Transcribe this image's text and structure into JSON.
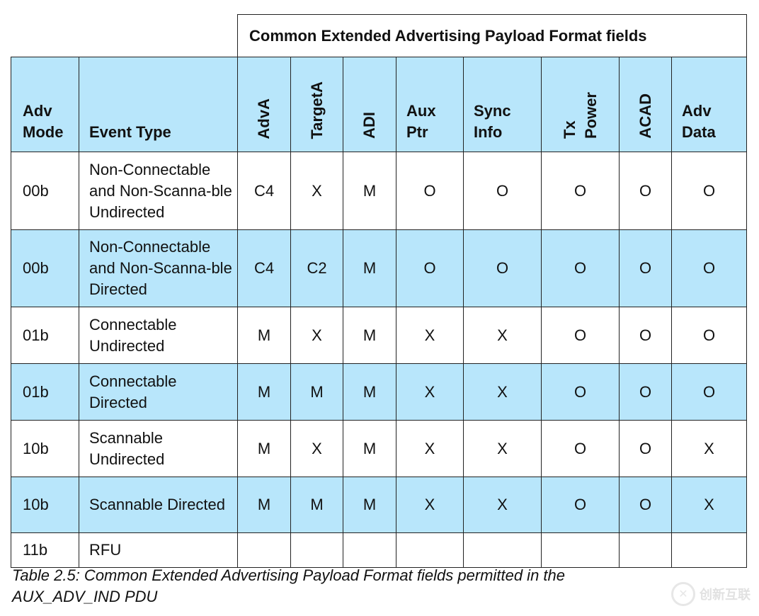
{
  "table": {
    "group_header": "Common Extended Advertising Payload Format fields",
    "columns": {
      "adv_mode": "Adv\nMode",
      "event_type": "Event Type",
      "adva": "AdvA",
      "targeta": "TargetA",
      "adi": "ADI",
      "aux_ptr": "Aux\nPtr",
      "sync_info": "Sync\nInfo",
      "tx_power": "Tx\nPower",
      "acad": "ACAD",
      "adv_data": "Adv\nData"
    },
    "rows": [
      {
        "mode": "00b",
        "event": "Non-Connectable and Non-Scanna-ble Undirected",
        "adva": "C4",
        "targeta": "X",
        "adi": "M",
        "aux_ptr": "O",
        "sync_info": "O",
        "tx_power": "O",
        "acad": "O",
        "adv_data": "O"
      },
      {
        "mode": "00b",
        "event": "Non-Connectable and Non-Scanna-ble Directed",
        "adva": "C4",
        "targeta": "C2",
        "adi": "M",
        "aux_ptr": "O",
        "sync_info": "O",
        "tx_power": "O",
        "acad": "O",
        "adv_data": "O"
      },
      {
        "mode": "01b",
        "event": "Connectable Undirected",
        "adva": "M",
        "targeta": "X",
        "adi": "M",
        "aux_ptr": "X",
        "sync_info": "X",
        "tx_power": "O",
        "acad": "O",
        "adv_data": "O"
      },
      {
        "mode": "01b",
        "event": "Connectable Directed",
        "adva": "M",
        "targeta": "M",
        "adi": "M",
        "aux_ptr": "X",
        "sync_info": "X",
        "tx_power": "O",
        "acad": "O",
        "adv_data": "O"
      },
      {
        "mode": "10b",
        "event": "Scannable Undirected",
        "adva": "M",
        "targeta": "X",
        "adi": "M",
        "aux_ptr": "X",
        "sync_info": "X",
        "tx_power": "O",
        "acad": "O",
        "adv_data": "X"
      },
      {
        "mode": "10b",
        "event": "Scannable Directed",
        "adva": "M",
        "targeta": "M",
        "adi": "M",
        "aux_ptr": "X",
        "sync_info": "X",
        "tx_power": "O",
        "acad": "O",
        "adv_data": "X"
      },
      {
        "mode": "11b",
        "event": "RFU",
        "adva": "",
        "targeta": "",
        "adi": "",
        "aux_ptr": "",
        "sync_info": "",
        "tx_power": "",
        "acad": "",
        "adv_data": ""
      }
    ]
  },
  "caption": "Table 2.5:  Common Extended Advertising Payload Format fields permitted in the AUX_ADV_IND PDU",
  "watermark": "创新互联",
  "colors": {
    "header_fill": "#b8e6fb",
    "row_shade": "#b8e6fb"
  }
}
